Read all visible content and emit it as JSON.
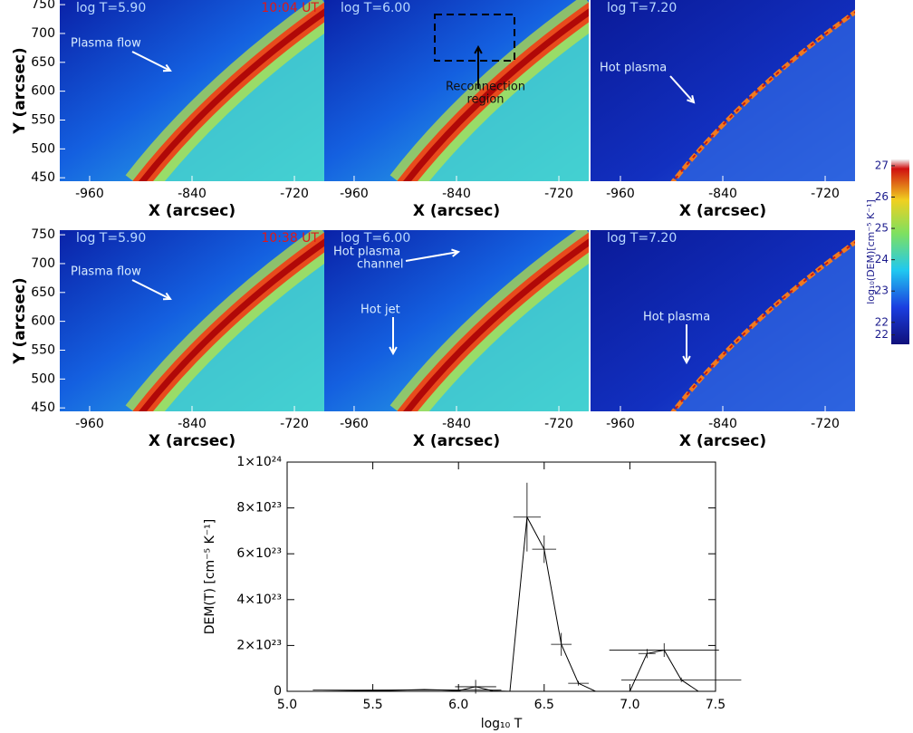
{
  "chart_data": [
    {
      "type": "heatmap",
      "title": "log T=5.90",
      "time": "10:04 UT",
      "xlabel": "X (arcsec)",
      "ylabel": "Y (arcsec)",
      "xlim": [
        -995,
        -685
      ],
      "ylim": [
        444,
        758
      ],
      "xticks": [
        -960,
        -840,
        -720
      ],
      "yticks": [
        450,
        500,
        550,
        600,
        650,
        700,
        750
      ],
      "annotations": [
        "Plasma flow"
      ]
    },
    {
      "type": "heatmap",
      "title": "log T=6.00",
      "xlabel": "X (arcsec)",
      "xlim": [
        -995,
        -685
      ],
      "xticks": [
        -960,
        -840,
        -720
      ],
      "annotations": [
        "Reconnection",
        "region"
      ]
    },
    {
      "type": "heatmap",
      "title": "log T=7.20",
      "xlabel": "X (arcsec)",
      "xlim": [
        -995,
        -685
      ],
      "xticks": [
        -960,
        -840,
        -720
      ],
      "annotations": [
        "Hot plasma"
      ]
    },
    {
      "type": "heatmap",
      "title": "log T=5.90",
      "time": "10:38 UT",
      "xlabel": "X (arcsec)",
      "ylabel": "Y (arcsec)",
      "xlim": [
        -995,
        -685
      ],
      "ylim": [
        444,
        758
      ],
      "xticks": [
        -960,
        -840,
        -720
      ],
      "yticks": [
        450,
        500,
        550,
        600,
        650,
        700,
        750
      ],
      "annotations": [
        "Plasma flow"
      ]
    },
    {
      "type": "heatmap",
      "title": "log T=6.00",
      "xlabel": "X (arcsec)",
      "xlim": [
        -995,
        -685
      ],
      "xticks": [
        -960,
        -840,
        -720
      ],
      "annotations": [
        "Hot plasma",
        "channel",
        "Hot jet"
      ]
    },
    {
      "type": "heatmap",
      "title": "log T=7.20",
      "xlabel": "X (arcsec)",
      "xlim": [
        -995,
        -685
      ],
      "xticks": [
        -960,
        -840,
        -720
      ],
      "annotations": [
        "Hot plasma"
      ]
    },
    {
      "type": "colorbar",
      "label": "log₁₀(DEM)[cm⁻⁵ K⁻¹]",
      "ylim": [
        21.3,
        27.2
      ],
      "yticks": [
        27,
        26,
        25,
        24,
        23,
        22,
        {
          "value": 21.6,
          "label": "22"
        }
      ]
    },
    {
      "type": "line",
      "xlabel": "log₁₀ T",
      "ylabel": "DEM(T) [cm⁻⁵ K⁻¹]",
      "xlim": [
        5.0,
        7.5
      ],
      "ylim": [
        0,
        1e+24
      ],
      "xticks": [
        {
          "value": 5,
          "label": "5.0"
        },
        5.5,
        {
          "value": 6,
          "label": "6.0"
        },
        6.5,
        {
          "value": 7,
          "label": "7.0"
        },
        7.5
      ],
      "yticks": [
        0,
        {
          "value": 2e+23,
          "label": "2×10²³"
        },
        {
          "value": 4e+23,
          "label": "4×10²³"
        },
        {
          "value": 6e+23,
          "label": "6×10²³"
        },
        {
          "value": 8e+23,
          "label": "8×10²³"
        },
        {
          "value": 1e+24,
          "label": "1×10²⁴"
        }
      ],
      "x": [
        5.2,
        5.3,
        5.4,
        5.5,
        5.6,
        5.7,
        5.8,
        5.9,
        6.0,
        6.1,
        6.2,
        6.3,
        6.4,
        6.5,
        6.6,
        6.7,
        6.8,
        6.9,
        7.0,
        7.1,
        7.2,
        7.3,
        7.4
      ],
      "series": [
        {
          "color": "#000000",
          "values": [
            0,
            1e+21,
            2e+21,
            3e+21,
            4e+21,
            6e+21,
            8e+21,
            6e+21,
            3e+21,
            2e+22,
            2e+21,
            0,
            7.6e+23,
            6.2e+23,
            2.05e+23,
            3.5e+22,
            0,
            0,
            0,
            1.65e+23,
            1.8e+23,
            5e+22,
            0
          ],
          "xerr": [
            null,
            null,
            null,
            null,
            null,
            0.55,
            null,
            null,
            null,
            0.12,
            null,
            null,
            0.08,
            0.07,
            0.06,
            0.06,
            null,
            null,
            null,
            0.05,
            0.32,
            0.35,
            null
          ],
          "yerr": [
            null,
            null,
            null,
            null,
            null,
            null,
            null,
            null,
            null,
            3e+22,
            null,
            null,
            1.5e+23,
            6e+22,
            5e+22,
            1e+22,
            null,
            null,
            null,
            2e+22,
            3e+22,
            1e+22,
            null
          ]
        }
      ]
    }
  ]
}
